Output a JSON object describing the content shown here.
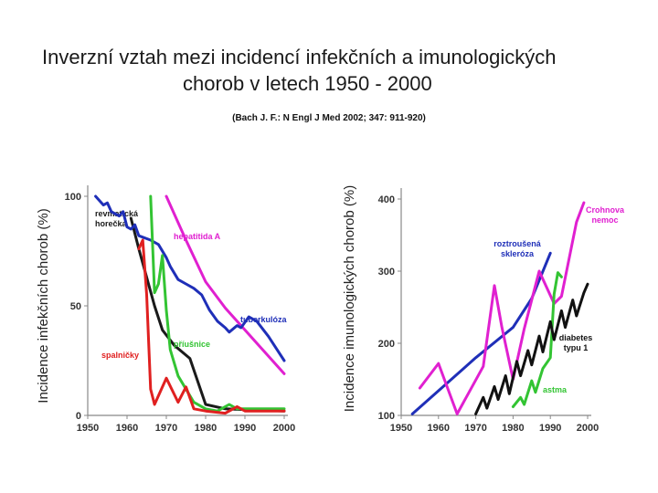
{
  "title_line1": "Inverzní vztah mezi incidencí infekčních a imunologických",
  "title_line2": "chorob v letech 1950 - 2000",
  "reference": "(Bach J. F.: N Engl J Med 2002; 347: 911-920)",
  "chart_data": [
    {
      "type": "line",
      "ylabel": "Incidence infekčních chorob (%)",
      "xlabel": "",
      "xlim": [
        1950,
        2000
      ],
      "ylim": [
        0,
        100
      ],
      "x_ticks": [
        1950,
        1960,
        1970,
        1980,
        1990,
        2000
      ],
      "y_ticks": [
        0,
        50,
        100
      ],
      "series": [
        {
          "name": "revmatická horečka",
          "label_lines": [
            "revmatická",
            "horečka"
          ],
          "color": "#1a1a1a",
          "points": [
            [
              1961,
              90
            ],
            [
              1963,
              76
            ],
            [
              1965,
              63
            ],
            [
              1967,
              50
            ],
            [
              1969,
              39
            ],
            [
              1972,
              32
            ],
            [
              1976,
              26
            ],
            [
              1980,
              5
            ],
            [
              1985,
              3
            ],
            [
              2000,
              2
            ]
          ]
        },
        {
          "name": "hepatitida A",
          "label_lines": [
            "hepatitida A"
          ],
          "color": "#e020d0",
          "points": [
            [
              1970,
              100
            ],
            [
              1975,
              80
            ],
            [
              1980,
              61
            ],
            [
              1985,
              49
            ],
            [
              1990,
              39
            ],
            [
              1995,
              29
            ],
            [
              2000,
              19
            ]
          ]
        },
        {
          "name": "tuberkulóza",
          "label_lines": [
            "tuberkulóza"
          ],
          "color": "#1f2fb8",
          "points": [
            [
              1952,
              100
            ],
            [
              1954,
              96
            ],
            [
              1955,
              97
            ],
            [
              1956,
              93
            ],
            [
              1958,
              91
            ],
            [
              1959,
              93
            ],
            [
              1960,
              86
            ],
            [
              1961,
              85
            ],
            [
              1962,
              87
            ],
            [
              1963,
              82
            ],
            [
              1966,
              80
            ],
            [
              1968,
              78
            ],
            [
              1970,
              72
            ],
            [
              1971,
              68
            ],
            [
              1973,
              62
            ],
            [
              1975,
              60
            ],
            [
              1977,
              58
            ],
            [
              1979,
              55
            ],
            [
              1981,
              48
            ],
            [
              1983,
              43
            ],
            [
              1985,
              40
            ],
            [
              1986,
              38
            ],
            [
              1988,
              41
            ],
            [
              1989,
              40
            ],
            [
              1991,
              45
            ],
            [
              1993,
              43
            ],
            [
              1996,
              36
            ],
            [
              2000,
              25
            ]
          ]
        },
        {
          "name": "příušnice",
          "label_lines": [
            "příušnice"
          ],
          "color": "#33c433",
          "points": [
            [
              1966,
              100
            ],
            [
              1967,
              56
            ],
            [
              1968,
              60
            ],
            [
              1969,
              73
            ],
            [
              1970,
              48
            ],
            [
              1971,
              30
            ],
            [
              1972,
              24
            ],
            [
              1973,
              18
            ],
            [
              1975,
              12
            ],
            [
              1977,
              6
            ],
            [
              1980,
              3
            ],
            [
              1983,
              2
            ],
            [
              1986,
              5
            ],
            [
              1988,
              3
            ],
            [
              2000,
              3
            ]
          ]
        },
        {
          "name": "spalničky",
          "label_lines": [
            "spalničky"
          ],
          "color": "#e02020",
          "points": [
            [
              1963,
              76
            ],
            [
              1964,
              80
            ],
            [
              1965,
              55
            ],
            [
              1966,
              12
            ],
            [
              1967,
              5
            ],
            [
              1970,
              17
            ],
            [
              1973,
              6
            ],
            [
              1975,
              13
            ],
            [
              1977,
              3
            ],
            [
              1980,
              2
            ],
            [
              1985,
              1
            ],
            [
              1988,
              4
            ],
            [
              1990,
              2
            ],
            [
              2000,
              2
            ]
          ]
        }
      ]
    },
    {
      "type": "line",
      "ylabel": "Incidence imunologických chorob (%)",
      "xlabel": "",
      "xlim": [
        1950,
        2000
      ],
      "ylim": [
        100,
        400
      ],
      "x_ticks": [
        1950,
        1960,
        1970,
        1980,
        1990,
        2000
      ],
      "y_ticks": [
        100,
        200,
        300,
        400
      ],
      "series": [
        {
          "name": "roztroušená skleróza",
          "label_lines": [
            "roztroušená",
            "skleróza"
          ],
          "color": "#1f2fb8",
          "points": [
            [
              1953,
              102
            ],
            [
              1970,
              180
            ],
            [
              1980,
              222
            ],
            [
              1985,
              262
            ],
            [
              1990,
              325
            ]
          ]
        },
        {
          "name": "Crohnova nemoc",
          "label_lines": [
            "Crohnova",
            "nemoc"
          ],
          "color": "#e020d0",
          "points": [
            [
              1955,
              138
            ],
            [
              1960,
              172
            ],
            [
              1965,
              102
            ],
            [
              1972,
              168
            ],
            [
              1975,
              280
            ],
            [
              1977,
              222
            ],
            [
              1980,
              150
            ],
            [
              1983,
              220
            ],
            [
              1987,
              300
            ],
            [
              1991,
              255
            ],
            [
              1993,
              265
            ],
            [
              1997,
              368
            ],
            [
              1999,
              395
            ]
          ]
        },
        {
          "name": "astma",
          "label_lines": [
            "astma"
          ],
          "color": "#33c433",
          "points": [
            [
              1980,
              112
            ],
            [
              1982,
              125
            ],
            [
              1983,
              115
            ],
            [
              1985,
              148
            ],
            [
              1986,
              132
            ],
            [
              1988,
              165
            ],
            [
              1990,
              180
            ],
            [
              1991,
              268
            ],
            [
              1992,
              298
            ],
            [
              1993,
              292
            ]
          ]
        },
        {
          "name": "diabetes typu 1",
          "label_lines": [
            "diabetes",
            "typu 1"
          ],
          "color": "#111111",
          "points": [
            [
              1970,
              102
            ],
            [
              1972,
              125
            ],
            [
              1973,
              110
            ],
            [
              1975,
              140
            ],
            [
              1976,
              122
            ],
            [
              1978,
              155
            ],
            [
              1979,
              130
            ],
            [
              1981,
              175
            ],
            [
              1982,
              155
            ],
            [
              1984,
              190
            ],
            [
              1985,
              170
            ],
            [
              1987,
              210
            ],
            [
              1988,
              188
            ],
            [
              1990,
              230
            ],
            [
              1991,
              205
            ],
            [
              1993,
              245
            ],
            [
              1994,
              222
            ],
            [
              1996,
              260
            ],
            [
              1997,
              238
            ],
            [
              1999,
              270
            ],
            [
              2000,
              282
            ]
          ]
        }
      ]
    }
  ]
}
